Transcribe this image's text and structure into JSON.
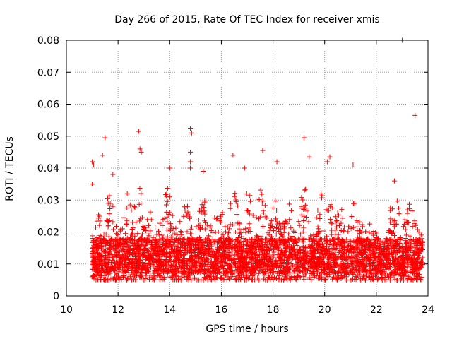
{
  "chart_data": {
    "type": "scatter",
    "title": "Day 266 of 2015, Rate Of TEC Index for receiver xmis",
    "xlabel": "GPS time / hours",
    "ylabel": "ROTI / TECUs",
    "xlim": [
      10,
      24
    ],
    "ylim": [
      0,
      0.08
    ],
    "x_ticks": [
      10,
      12,
      14,
      16,
      18,
      20,
      22,
      24
    ],
    "x_tick_labels": [
      "10",
      "12",
      "14",
      "16",
      "18",
      "20",
      "22",
      "24"
    ],
    "y_ticks": [
      0,
      0.01,
      0.02,
      0.03,
      0.04,
      0.05,
      0.06,
      0.07,
      0.08
    ],
    "y_tick_labels": [
      "0",
      "0.01",
      "0.02",
      "0.03",
      "0.04",
      "0.05",
      "0.06",
      "0.07",
      "0.08"
    ],
    "grid": true,
    "marker": "+",
    "series_color": "#ff0000",
    "data_x_range": [
      11.0,
      23.8
    ],
    "typical_band": [
      0.005,
      0.02
    ],
    "notable_points": [
      {
        "x": 11.0,
        "y": 0.042
      },
      {
        "x": 11.05,
        "y": 0.041
      },
      {
        "x": 11.0,
        "y": 0.035
      },
      {
        "x": 11.5,
        "y": 0.0495
      },
      {
        "x": 11.4,
        "y": 0.044
      },
      {
        "x": 11.8,
        "y": 0.038
      },
      {
        "x": 12.8,
        "y": 0.0515
      },
      {
        "x": 12.85,
        "y": 0.046
      },
      {
        "x": 12.9,
        "y": 0.045
      },
      {
        "x": 14.0,
        "y": 0.04
      },
      {
        "x": 14.8,
        "y": 0.0525
      },
      {
        "x": 14.85,
        "y": 0.051
      },
      {
        "x": 14.8,
        "y": 0.045
      },
      {
        "x": 14.8,
        "y": 0.042
      },
      {
        "x": 14.8,
        "y": 0.04
      },
      {
        "x": 15.3,
        "y": 0.039
      },
      {
        "x": 16.45,
        "y": 0.044
      },
      {
        "x": 16.9,
        "y": 0.04
      },
      {
        "x": 17.6,
        "y": 0.0455
      },
      {
        "x": 18.15,
        "y": 0.042
      },
      {
        "x": 19.2,
        "y": 0.0495
      },
      {
        "x": 19.4,
        "y": 0.0435
      },
      {
        "x": 20.2,
        "y": 0.0435
      },
      {
        "x": 20.1,
        "y": 0.042
      },
      {
        "x": 21.1,
        "y": 0.041
      },
      {
        "x": 22.7,
        "y": 0.036
      },
      {
        "x": 23.0,
        "y": 0.08
      },
      {
        "x": 23.5,
        "y": 0.0565
      }
    ],
    "activity_bursts": [
      {
        "center": 11.3,
        "peak": 0.026
      },
      {
        "center": 11.65,
        "peak": 0.033
      },
      {
        "center": 12.4,
        "peak": 0.033
      },
      {
        "center": 12.8,
        "peak": 0.036
      },
      {
        "center": 13.3,
        "peak": 0.03
      },
      {
        "center": 13.9,
        "peak": 0.035
      },
      {
        "center": 14.6,
        "peak": 0.03
      },
      {
        "center": 15.3,
        "peak": 0.032
      },
      {
        "center": 15.9,
        "peak": 0.03
      },
      {
        "center": 16.5,
        "peak": 0.034
      },
      {
        "center": 17.05,
        "peak": 0.036
      },
      {
        "center": 17.6,
        "peak": 0.036
      },
      {
        "center": 18.1,
        "peak": 0.03
      },
      {
        "center": 18.6,
        "peak": 0.029
      },
      {
        "center": 19.2,
        "peak": 0.035
      },
      {
        "center": 19.9,
        "peak": 0.036
      },
      {
        "center": 20.3,
        "peak": 0.034
      },
      {
        "center": 20.7,
        "peak": 0.03
      },
      {
        "center": 21.1,
        "peak": 0.033
      },
      {
        "center": 21.6,
        "peak": 0.024
      },
      {
        "center": 22.2,
        "peak": 0.018
      },
      {
        "center": 22.7,
        "peak": 0.034
      },
      {
        "center": 23.3,
        "peak": 0.029
      }
    ]
  }
}
